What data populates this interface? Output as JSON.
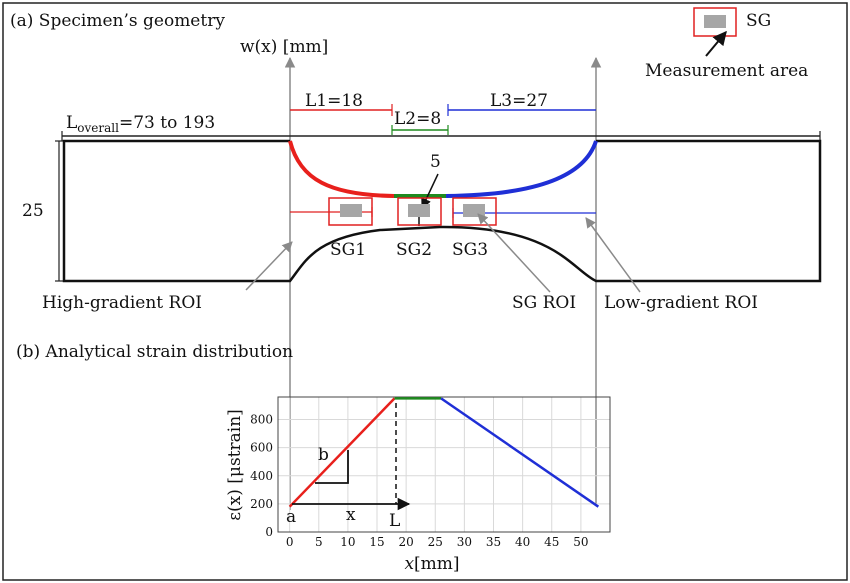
{
  "panel_a": {
    "title": "(a) Specimen’s geometry",
    "axis_label": "w(x) [mm]",
    "overall_main": "L",
    "overall_sub": "overall",
    "overall_rest": "=73 to 193",
    "l1": "L1=18",
    "l2": "L2=8",
    "l3": "L3=27",
    "thickness": "25",
    "min_width": "5",
    "sg1": "SG1",
    "sg2": "SG2",
    "sg3": "SG3",
    "high_roi": "High-gradient ROI",
    "sg_roi": "SG ROI",
    "low_roi": "Low-gradient ROI",
    "legend_sg": "SG",
    "legend_measure": "Measurement area"
  },
  "panel_b": {
    "title": "(b) Analytical strain distribution"
  },
  "chart_data": {
    "type": "line",
    "xlabel_main": "x",
    "xlabel_unit": "[mm]",
    "ylabel": "ε(x) [μstrain]",
    "xlim": [
      -2,
      55
    ],
    "ylim": [
      0,
      960
    ],
    "x_ticks": [
      0,
      5,
      10,
      15,
      20,
      25,
      30,
      35,
      40,
      45,
      50
    ],
    "y_ticks": [
      0,
      200,
      400,
      600,
      800
    ],
    "grid": true,
    "series": [
      {
        "color": "#e8201c",
        "x": [
          0,
          18
        ],
        "y": [
          180,
          950
        ]
      },
      {
        "color": "#1f8a1f",
        "x": [
          18,
          26
        ],
        "y": [
          950,
          950
        ]
      },
      {
        "color": "#1f2fd6",
        "x": [
          26,
          53
        ],
        "y": [
          950,
          180
        ]
      }
    ],
    "annotations": {
      "a": "a",
      "b": "b",
      "x": "x",
      "L": "L"
    }
  },
  "colors": {
    "red": "#e8201c",
    "green": "#1f8a1f",
    "blue": "#1f2fd6",
    "gray_arrow": "#8a8a8a",
    "sg_fill": "#a6a6a6",
    "roi_box": "#e02020"
  }
}
